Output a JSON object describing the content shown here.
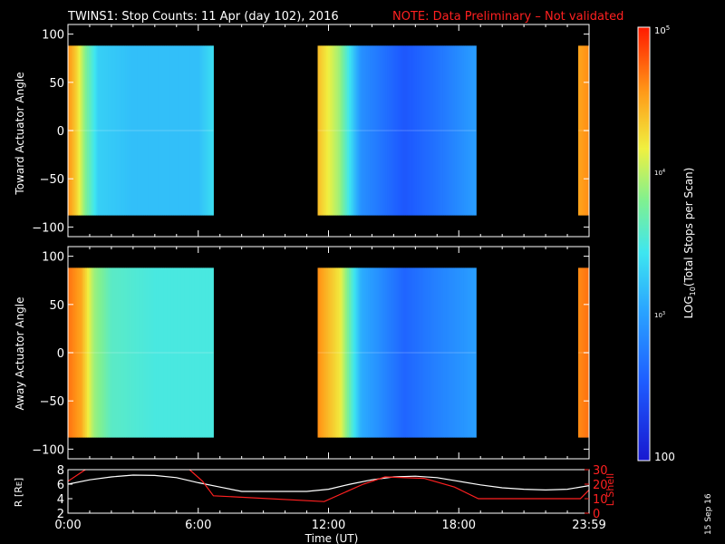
{
  "title": {
    "main": "TWINS1: Stop Counts: 11 Apr (day 102), 2016",
    "note": "NOTE: Data Preliminary – Not validated",
    "note_color": "#ff2020"
  },
  "date_stamp": "15 Sep 16",
  "chart_data": [
    {
      "type": "heatmap",
      "panel": "toward",
      "ylabel": "Toward Actuator Angle",
      "ylim": [
        -110,
        110
      ],
      "yticks": [
        "100",
        "50",
        "0",
        "−50",
        "−100"
      ],
      "angle_range": [
        -88,
        88
      ],
      "data_segments_hours": [
        [
          0.0,
          6.7
        ],
        [
          11.5,
          18.8
        ],
        [
          23.5,
          24.0
        ]
      ],
      "log10_counts_by_time": [
        {
          "hour": 0.0,
          "v": 4.6
        },
        {
          "hour": 0.4,
          "v": 4.3
        },
        {
          "hour": 0.8,
          "v": 3.8
        },
        {
          "hour": 1.4,
          "v": 3.3
        },
        {
          "hour": 3.0,
          "v": 3.2
        },
        {
          "hour": 6.0,
          "v": 3.2
        },
        {
          "hour": 6.7,
          "v": 3.4
        },
        {
          "hour": 11.5,
          "v": 4.4
        },
        {
          "hour": 12.5,
          "v": 3.9
        },
        {
          "hour": 13.5,
          "v": 2.9
        },
        {
          "hour": 15.5,
          "v": 2.5
        },
        {
          "hour": 17.0,
          "v": 2.7
        },
        {
          "hour": 18.8,
          "v": 3.0
        },
        {
          "hour": 23.5,
          "v": 4.5
        },
        {
          "hour": 24.0,
          "v": 4.6
        }
      ]
    },
    {
      "type": "heatmap",
      "panel": "away",
      "ylabel": "Away Actuator Angle",
      "ylim": [
        -110,
        110
      ],
      "yticks": [
        "100",
        "50",
        "0",
        "−50",
        "−100"
      ],
      "angle_range": [
        -88,
        88
      ],
      "data_segments_hours": [
        [
          0.0,
          6.7
        ],
        [
          11.5,
          18.8
        ],
        [
          23.5,
          24.0
        ]
      ],
      "log10_counts_by_time": [
        {
          "hour": 0.0,
          "v": 4.7
        },
        {
          "hour": 0.6,
          "v": 4.5
        },
        {
          "hour": 1.2,
          "v": 3.9
        },
        {
          "hour": 2.0,
          "v": 3.6
        },
        {
          "hour": 4.0,
          "v": 3.5
        },
        {
          "hour": 6.7,
          "v": 3.5
        },
        {
          "hour": 11.5,
          "v": 4.6
        },
        {
          "hour": 12.5,
          "v": 4.2
        },
        {
          "hour": 13.5,
          "v": 3.1
        },
        {
          "hour": 15.5,
          "v": 2.6
        },
        {
          "hour": 17.0,
          "v": 2.8
        },
        {
          "hour": 18.8,
          "v": 3.0
        },
        {
          "hour": 23.5,
          "v": 4.6
        },
        {
          "hour": 24.0,
          "v": 4.7
        }
      ]
    },
    {
      "type": "line",
      "panel": "orbit",
      "ylabel_left": "R [R",
      "ylabel_left_sub": "E",
      "ylabel_left_end": "]",
      "ylabel_right": "L Shell",
      "ylim_left": [
        2,
        8
      ],
      "ylim_right": [
        0,
        30
      ],
      "yticks_left": [
        "8",
        "6",
        "4",
        "2"
      ],
      "yticks_right": [
        "30",
        "20",
        "10",
        "0"
      ],
      "xlabel": "Time (UT)",
      "xlim": [
        0,
        24
      ],
      "xticks": [
        {
          "hour": 0.0,
          "label": "0:00"
        },
        {
          "hour": 6.0,
          "label": "6:00"
        },
        {
          "hour": 12.0,
          "label": "12:00"
        },
        {
          "hour": 18.0,
          "label": "18:00"
        },
        {
          "hour": 24.0,
          "label": "23:59"
        }
      ],
      "series": [
        {
          "axis": "left",
          "color": "#ffffff",
          "x": [
            0,
            1,
            2,
            3,
            4,
            5,
            6,
            7,
            8,
            9,
            10,
            11,
            12,
            13,
            14,
            15,
            16,
            17,
            18,
            19,
            20,
            21,
            22,
            23,
            24
          ],
          "y": [
            6.0,
            6.6,
            7.0,
            7.25,
            7.2,
            6.9,
            6.2,
            5.6,
            5.0,
            5.0,
            5.0,
            5.0,
            5.3,
            6.0,
            6.6,
            7.0,
            7.1,
            6.9,
            6.4,
            5.9,
            5.5,
            5.3,
            5.2,
            5.3,
            5.8
          ]
        },
        {
          "axis": "right",
          "color": "#ff2020",
          "x": [
            0,
            0.8,
            1.4,
            5.2,
            5.6,
            6.2,
            6.7,
            11.8,
            13.6,
            14.6,
            16.4,
            17.8,
            18.9,
            23.6,
            24
          ],
          "y": [
            22,
            30,
            31,
            31,
            30,
            22,
            12,
            8,
            20,
            25,
            24,
            18,
            10,
            10,
            16
          ]
        }
      ]
    }
  ],
  "colorbar": {
    "label_prefix": "LOG",
    "label_sub": "10",
    "label_suffix": "(Total Stops per Scan)",
    "tick_top": "10",
    "tick_top_exp": "5",
    "tick_mid": "10",
    "tick_mid_exp": "4",
    "tick_low": "10",
    "tick_low_exp": "3",
    "tick_bottom": "100",
    "range": [
      2,
      5
    ]
  }
}
